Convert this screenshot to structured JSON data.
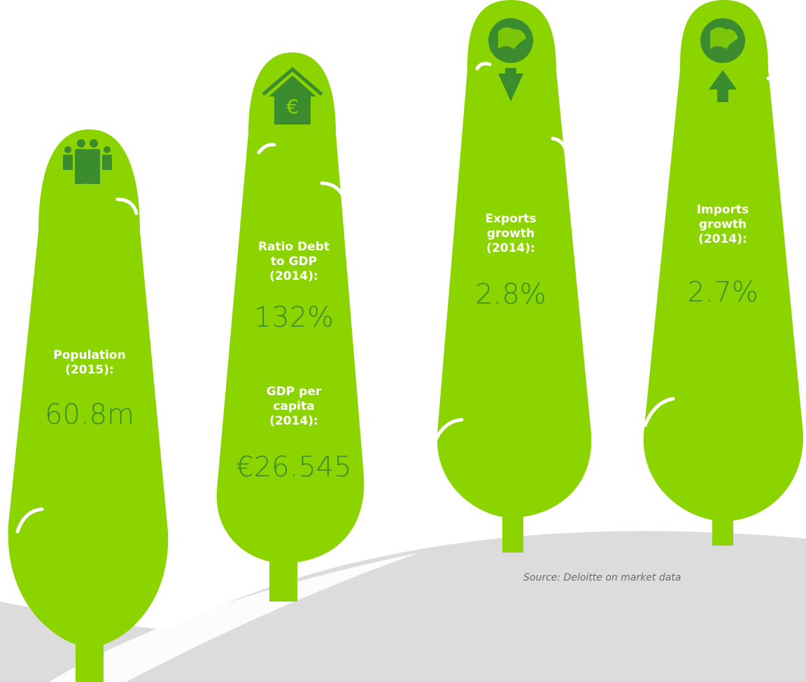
{
  "colors": {
    "tree_fill": "#8cd400",
    "icon_fill": "#3a8c2e",
    "value_text": "#3a8c2e",
    "label_text": "#ffffff",
    "ground": "#dcdcdc",
    "trunk": "#8cd400"
  },
  "trees": [
    {
      "icon": "people-icon",
      "label": "Population\n(2015):",
      "value": "60.8m"
    },
    {
      "icon": "house-euro-icon",
      "stats": [
        {
          "label": "Ratio Debt\nto GDP\n(2014):",
          "value": "132%"
        },
        {
          "label": "GDP per\ncapita\n(2014):",
          "value": "€26.545"
        }
      ]
    },
    {
      "icon": "globe-arrow-down-icon",
      "label": "Exports\ngrowth\n(2014):",
      "value": "2.8%"
    },
    {
      "icon": "globe-arrow-up-icon",
      "label": "Imports\ngrowth\n(2014):",
      "value": "2.7%"
    }
  ],
  "source": "Source: Deloitte on market data"
}
